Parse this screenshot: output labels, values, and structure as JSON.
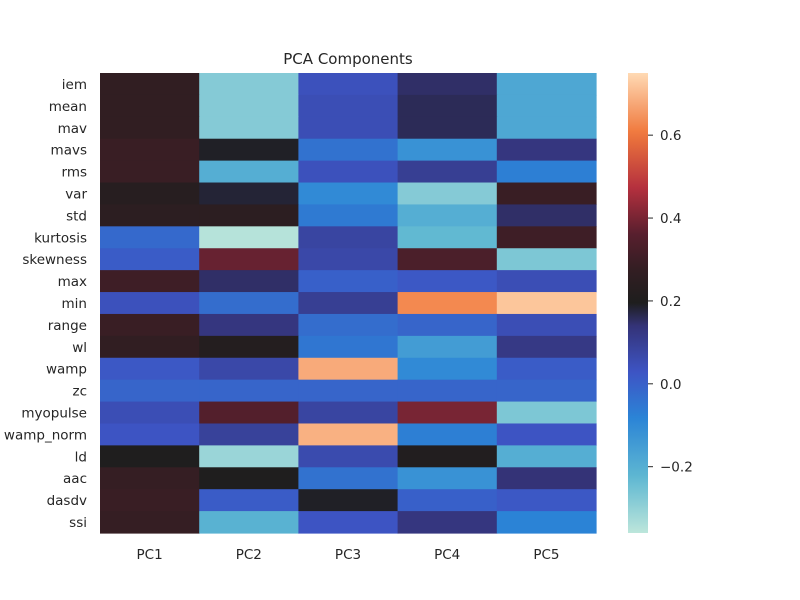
{
  "chart_data": {
    "type": "heatmap",
    "title": "PCA Components",
    "xlabel": "",
    "ylabel": "",
    "columns": [
      "PC1",
      "PC2",
      "PC3",
      "PC4",
      "PC5"
    ],
    "rows": [
      "iem",
      "mean",
      "mav",
      "mavs",
      "rms",
      "var",
      "std",
      "kurtosis",
      "skewness",
      "max",
      "min",
      "range",
      "wl",
      "wamp",
      "zc",
      "myopulse",
      "wamp_norm",
      "ld",
      "aac",
      "dasdv",
      "ssi"
    ],
    "values": [
      [
        0.27,
        -0.28,
        0.04,
        0.15,
        -0.18
      ],
      [
        0.27,
        -0.28,
        0.05,
        0.16,
        -0.18
      ],
      [
        0.27,
        -0.28,
        0.05,
        0.16,
        -0.18
      ],
      [
        0.29,
        0.19,
        -0.04,
        -0.12,
        0.13
      ],
      [
        0.29,
        -0.2,
        0.04,
        0.1,
        -0.07
      ],
      [
        0.23,
        0.18,
        -0.1,
        -0.28,
        0.29
      ],
      [
        0.25,
        0.25,
        -0.06,
        -0.2,
        0.15
      ],
      [
        -0.02,
        -0.35,
        0.08,
        -0.23,
        0.3
      ],
      [
        0.01,
        0.38,
        0.07,
        0.33,
        -0.27
      ],
      [
        0.3,
        0.15,
        0.0,
        0.02,
        0.05
      ],
      [
        0.04,
        -0.03,
        0.1,
        0.63,
        0.72
      ],
      [
        0.29,
        0.13,
        -0.03,
        -0.01,
        0.05
      ],
      [
        0.27,
        0.22,
        -0.05,
        -0.15,
        0.12
      ],
      [
        0.02,
        0.07,
        0.68,
        -0.1,
        0.01
      ],
      [
        -0.01,
        -0.01,
        -0.01,
        -0.01,
        -0.01
      ],
      [
        0.05,
        0.35,
        0.08,
        0.4,
        -0.27
      ],
      [
        0.03,
        0.09,
        0.69,
        -0.07,
        0.03
      ],
      [
        0.2,
        -0.31,
        0.06,
        0.21,
        -0.2
      ],
      [
        0.28,
        0.2,
        -0.04,
        -0.12,
        0.14
      ],
      [
        0.29,
        0.01,
        0.19,
        0.0,
        0.02
      ],
      [
        0.28,
        -0.21,
        0.03,
        0.13,
        -0.08
      ]
    ],
    "colorbar": {
      "range": [
        -0.36,
        0.75
      ],
      "ticks": [
        0.6,
        0.4,
        0.2,
        0.0,
        -0.2
      ],
      "tick_labels": [
        "0.6",
        "0.4",
        "0.2",
        "0.0",
        "−0.2"
      ],
      "colormap": "icefire"
    },
    "grid": false,
    "legend": "colorbar-right"
  }
}
